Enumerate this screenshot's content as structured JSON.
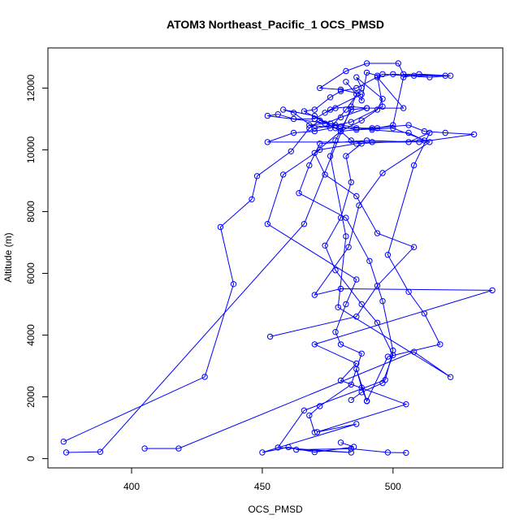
{
  "chart_data": {
    "type": "scatter",
    "title": "ATOM3 Northeast_Pacific_1 OCS_PMSD",
    "xlabel": "OCS_PMSD",
    "ylabel": "Altitude (m)",
    "xlim": [
      368,
      542
    ],
    "ylim": [
      -300,
      13300
    ],
    "x_ticks": [
      400,
      450,
      500
    ],
    "y_ticks": [
      0,
      2000,
      4000,
      6000,
      8000,
      10000,
      12000
    ],
    "x_tick_labels": [
      "400",
      "450",
      "500"
    ],
    "y_tick_labels": [
      "0",
      "2000",
      "4000",
      "6000",
      "8000",
      "10000",
      "12000"
    ],
    "grid": false,
    "legend": "none",
    "line_color": "#0000ff",
    "marker": "open-circle",
    "series": [
      {
        "values": [
          {
            "x": 375,
            "y": 200
          },
          {
            "x": 388,
            "y": 220
          },
          {
            "x": 466,
            "y": 7600
          },
          {
            "x": 486,
            "y": 11800
          },
          {
            "x": 482,
            "y": 12200
          },
          {
            "x": 488,
            "y": 11600
          },
          {
            "x": 490,
            "y": 12500
          },
          {
            "x": 494,
            "y": 12400
          },
          {
            "x": 496,
            "y": 11400
          },
          {
            "x": 484,
            "y": 10900
          },
          {
            "x": 478,
            "y": 10800
          },
          {
            "x": 470,
            "y": 10700
          },
          {
            "x": 462,
            "y": 11200
          },
          {
            "x": 458,
            "y": 11300
          },
          {
            "x": 470,
            "y": 11100
          },
          {
            "x": 480,
            "y": 10600
          },
          {
            "x": 492,
            "y": 10700
          },
          {
            "x": 506,
            "y": 10800
          },
          {
            "x": 512,
            "y": 10600
          },
          {
            "x": 520,
            "y": 10550
          },
          {
            "x": 531,
            "y": 10500
          },
          {
            "x": 510,
            "y": 10250
          },
          {
            "x": 490,
            "y": 10300
          },
          {
            "x": 472,
            "y": 10200
          },
          {
            "x": 468,
            "y": 9500
          },
          {
            "x": 464,
            "y": 8600
          },
          {
            "x": 482,
            "y": 7800
          },
          {
            "x": 491,
            "y": 6400
          },
          {
            "x": 496,
            "y": 5100
          },
          {
            "x": 500,
            "y": 3500
          },
          {
            "x": 497,
            "y": 2550
          },
          {
            "x": 466,
            "y": 1560
          },
          {
            "x": 456,
            "y": 360
          },
          {
            "x": 484,
            "y": 200
          },
          {
            "x": 463,
            "y": 290
          },
          {
            "x": 484,
            "y": 320
          },
          {
            "x": 498,
            "y": 200
          },
          {
            "x": 505,
            "y": 190
          }
        ]
      },
      {
        "values": [
          {
            "x": 374,
            "y": 550
          },
          {
            "x": 428,
            "y": 2650
          },
          {
            "x": 439,
            "y": 5650
          },
          {
            "x": 434,
            "y": 7500
          },
          {
            "x": 446,
            "y": 8400
          },
          {
            "x": 448,
            "y": 9150
          },
          {
            "x": 461,
            "y": 9950
          },
          {
            "x": 468,
            "y": 10700
          },
          {
            "x": 472,
            "y": 10950
          },
          {
            "x": 480,
            "y": 10750
          },
          {
            "x": 486,
            "y": 10650
          },
          {
            "x": 500,
            "y": 10700
          },
          {
            "x": 514,
            "y": 10250
          },
          {
            "x": 496,
            "y": 9250
          },
          {
            "x": 487,
            "y": 8200
          },
          {
            "x": 483,
            "y": 6850
          },
          {
            "x": 470,
            "y": 5300
          },
          {
            "x": 480,
            "y": 5500
          },
          {
            "x": 538,
            "y": 5450
          },
          {
            "x": 470,
            "y": 3700
          },
          {
            "x": 486,
            "y": 3080
          },
          {
            "x": 480,
            "y": 2530
          },
          {
            "x": 505,
            "y": 1760
          },
          {
            "x": 471,
            "y": 860
          },
          {
            "x": 486,
            "y": 1120
          },
          {
            "x": 450,
            "y": 200
          },
          {
            "x": 460,
            "y": 370
          },
          {
            "x": 470,
            "y": 210
          },
          {
            "x": 485,
            "y": 380
          },
          {
            "x": 480,
            "y": 520
          }
        ]
      },
      {
        "values": [
          {
            "x": 405,
            "y": 330
          },
          {
            "x": 418,
            "y": 330
          },
          {
            "x": 508,
            "y": 3460
          },
          {
            "x": 522,
            "y": 2640
          },
          {
            "x": 479,
            "y": 4900
          },
          {
            "x": 482,
            "y": 7200
          },
          {
            "x": 476,
            "y": 9800
          },
          {
            "x": 478,
            "y": 10300
          },
          {
            "x": 484,
            "y": 11300
          },
          {
            "x": 490,
            "y": 11350
          },
          {
            "x": 504,
            "y": 11350
          },
          {
            "x": 494,
            "y": 12350
          },
          {
            "x": 500,
            "y": 12450
          },
          {
            "x": 508,
            "y": 12400
          },
          {
            "x": 520,
            "y": 12400
          },
          {
            "x": 504,
            "y": 12450
          },
          {
            "x": 502,
            "y": 12800
          },
          {
            "x": 490,
            "y": 12800
          },
          {
            "x": 482,
            "y": 12550
          },
          {
            "x": 472,
            "y": 12000
          },
          {
            "x": 480,
            "y": 11950
          },
          {
            "x": 488,
            "y": 11800
          },
          {
            "x": 476,
            "y": 11300
          },
          {
            "x": 470,
            "y": 11000
          },
          {
            "x": 462,
            "y": 11000
          },
          {
            "x": 456,
            "y": 11150
          },
          {
            "x": 452,
            "y": 11100
          },
          {
            "x": 476,
            "y": 10850
          },
          {
            "x": 492,
            "y": 10650
          },
          {
            "x": 506,
            "y": 10550
          },
          {
            "x": 512,
            "y": 10300
          },
          {
            "x": 486,
            "y": 10200
          },
          {
            "x": 472,
            "y": 10000
          },
          {
            "x": 458,
            "y": 9200
          },
          {
            "x": 452,
            "y": 7600
          },
          {
            "x": 486,
            "y": 5800
          },
          {
            "x": 482,
            "y": 5000
          },
          {
            "x": 478,
            "y": 4100
          },
          {
            "x": 480,
            "y": 3700
          },
          {
            "x": 488,
            "y": 3400
          },
          {
            "x": 484,
            "y": 2400
          },
          {
            "x": 472,
            "y": 1700
          },
          {
            "x": 468,
            "y": 1400
          },
          {
            "x": 470,
            "y": 850
          }
        ]
      },
      {
        "values": [
          {
            "x": 453,
            "y": 3950
          },
          {
            "x": 486,
            "y": 4600
          },
          {
            "x": 494,
            "y": 5600
          },
          {
            "x": 508,
            "y": 6850
          },
          {
            "x": 494,
            "y": 7300
          },
          {
            "x": 486,
            "y": 8500
          },
          {
            "x": 474,
            "y": 9200
          },
          {
            "x": 470,
            "y": 9900
          },
          {
            "x": 480,
            "y": 10600
          },
          {
            "x": 488,
            "y": 10950
          },
          {
            "x": 494,
            "y": 11300
          },
          {
            "x": 496,
            "y": 11650
          },
          {
            "x": 486,
            "y": 12350
          },
          {
            "x": 488,
            "y": 12000
          },
          {
            "x": 482,
            "y": 11300
          },
          {
            "x": 476,
            "y": 10700
          },
          {
            "x": 470,
            "y": 10600
          },
          {
            "x": 462,
            "y": 10550
          },
          {
            "x": 452,
            "y": 10250
          },
          {
            "x": 492,
            "y": 10250
          },
          {
            "x": 506,
            "y": 10250
          },
          {
            "x": 514,
            "y": 10550
          },
          {
            "x": 508,
            "y": 9500
          },
          {
            "x": 498,
            "y": 6600
          },
          {
            "x": 506,
            "y": 5400
          },
          {
            "x": 512,
            "y": 4700
          },
          {
            "x": 518,
            "y": 3700
          },
          {
            "x": 498,
            "y": 3300
          },
          {
            "x": 490,
            "y": 1860
          },
          {
            "x": 488,
            "y": 2300
          },
          {
            "x": 486,
            "y": 2900
          },
          {
            "x": 490,
            "y": 1870
          }
        ]
      },
      {
        "values": [
          {
            "x": 474,
            "y": 11200
          },
          {
            "x": 478,
            "y": 11350
          },
          {
            "x": 484,
            "y": 11400
          },
          {
            "x": 490,
            "y": 11350
          },
          {
            "x": 480,
            "y": 11050
          },
          {
            "x": 474,
            "y": 10850
          },
          {
            "x": 468,
            "y": 10800
          },
          {
            "x": 478,
            "y": 10700
          },
          {
            "x": 486,
            "y": 10700
          },
          {
            "x": 494,
            "y": 10700
          },
          {
            "x": 500,
            "y": 10800
          },
          {
            "x": 504,
            "y": 12350
          },
          {
            "x": 510,
            "y": 12450
          },
          {
            "x": 522,
            "y": 12400
          },
          {
            "x": 514,
            "y": 12350
          },
          {
            "x": 496,
            "y": 12450
          },
          {
            "x": 486,
            "y": 12000
          },
          {
            "x": 480,
            "y": 11900
          },
          {
            "x": 476,
            "y": 11700
          },
          {
            "x": 470,
            "y": 11300
          },
          {
            "x": 466,
            "y": 11250
          },
          {
            "x": 480,
            "y": 10600
          },
          {
            "x": 484,
            "y": 10300
          },
          {
            "x": 488,
            "y": 10200
          },
          {
            "x": 482,
            "y": 9800
          },
          {
            "x": 484,
            "y": 8950
          },
          {
            "x": 480,
            "y": 7800
          },
          {
            "x": 474,
            "y": 6900
          },
          {
            "x": 478,
            "y": 6100
          },
          {
            "x": 488,
            "y": 5000
          },
          {
            "x": 494,
            "y": 4400
          },
          {
            "x": 500,
            "y": 3350
          },
          {
            "x": 496,
            "y": 2450
          },
          {
            "x": 488,
            "y": 2150
          },
          {
            "x": 484,
            "y": 1900
          }
        ]
      }
    ]
  }
}
